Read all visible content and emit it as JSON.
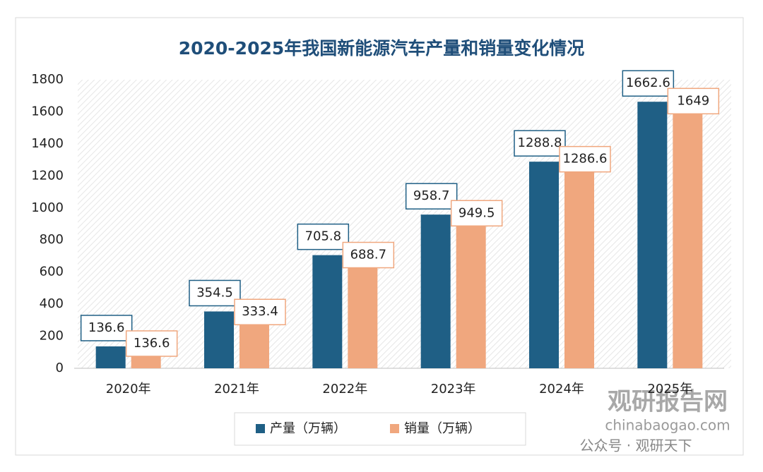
{
  "chart_data": {
    "type": "bar",
    "title": "2020-2025年我国新能源汽车产量和销量变化情况",
    "categories": [
      "2020年",
      "2021年",
      "2022年",
      "2023年",
      "2024年",
      "2025年"
    ],
    "series": [
      {
        "name": "产量（万辆）",
        "color": "#1f5f85",
        "values": [
          136.6,
          354.5,
          705.8,
          958.7,
          1288.8,
          1662.6
        ]
      },
      {
        "name": "销量（万辆）",
        "color": "#f0a77e",
        "values": [
          136.6,
          333.4,
          688.7,
          949.5,
          1286.6,
          1649
        ]
      }
    ],
    "ylim": [
      0,
      1800
    ],
    "yticks": [
      0,
      200,
      400,
      600,
      800,
      1000,
      1200,
      1400,
      1600,
      1800
    ],
    "legend": "bottom",
    "watermark": [
      "观研报告网",
      "chinabaogao.com",
      "公众号 · 观研天下"
    ]
  }
}
